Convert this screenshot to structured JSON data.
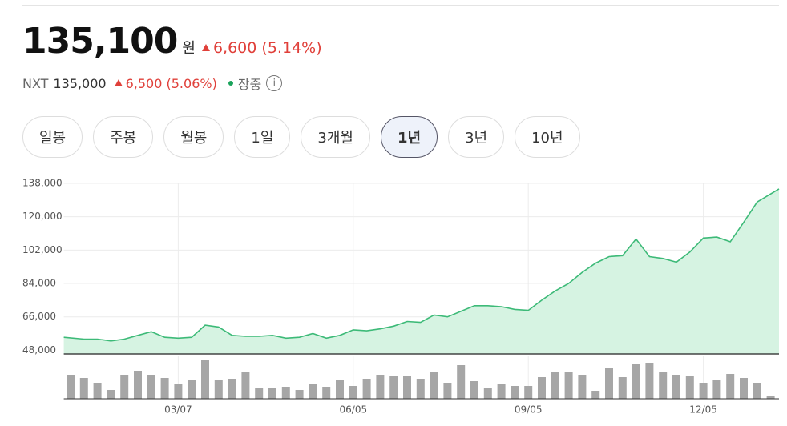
{
  "header": {
    "price": "135,100",
    "unit": "원",
    "change": "6,600",
    "change_pct": "(5.14%)",
    "nxt_label": "NXT",
    "nxt_price": "135,000",
    "nxt_change": "6,500",
    "nxt_change_pct": "(5.06%)",
    "status": "장중"
  },
  "tabs": {
    "items": [
      "일봉",
      "주봉",
      "월봉",
      "1일",
      "3개월",
      "1년",
      "3년",
      "10년"
    ],
    "active": "1년"
  },
  "chart_data": [
    {
      "type": "area",
      "color": "#3dba78",
      "fill": "#d6f3e2",
      "values": [
        55000,
        54000,
        54000,
        53000,
        54000,
        56000,
        58000,
        55000,
        54500,
        55000,
        61500,
        60500,
        56000,
        55500,
        55500,
        56000,
        54500,
        55000,
        57000,
        54500,
        56000,
        59000,
        58500,
        59500,
        61000,
        63500,
        63000,
        67000,
        66000,
        69000,
        72000,
        72000,
        71500,
        70000,
        69500,
        75000,
        80000,
        84000,
        90000,
        95000,
        98500,
        99000,
        108000,
        98500,
        97500,
        95500,
        101000,
        108500,
        109000,
        106500,
        117000,
        128000,
        135000
      ],
      "ylim": [
        46000,
        138000
      ],
      "yticks": [
        {
          "value": 48000,
          "label": "48,000"
        },
        {
          "value": 66000,
          "label": "66,000"
        },
        {
          "value": 84000,
          "label": "84,000"
        },
        {
          "value": 102000,
          "label": "102,000"
        },
        {
          "value": 120000,
          "label": "120,000"
        },
        {
          "value": 138000,
          "label": "138,000"
        }
      ],
      "grid": true
    },
    {
      "type": "bar",
      "color": "#a6a6a6",
      "categories": [
        null,
        null,
        null,
        null,
        null,
        null,
        null,
        null,
        "03/07",
        null,
        null,
        null,
        null,
        null,
        null,
        null,
        null,
        null,
        null,
        null,
        null,
        "06/05",
        null,
        null,
        null,
        null,
        null,
        null,
        null,
        null,
        null,
        null,
        null,
        null,
        "09/05",
        null,
        null,
        null,
        null,
        null,
        null,
        null,
        null,
        null,
        null,
        null,
        null,
        "12/05",
        null,
        null,
        null,
        null,
        null
      ],
      "values": [
        30,
        26,
        20,
        11,
        30,
        35,
        30,
        26,
        18,
        24,
        48,
        24,
        25,
        33,
        14,
        14,
        15,
        11,
        19,
        15,
        23,
        16,
        25,
        30,
        29,
        29,
        25,
        34,
        20,
        42,
        22,
        14,
        19,
        16,
        16,
        27,
        33,
        33,
        30,
        10,
        38,
        27,
        43,
        45,
        33,
        30,
        29,
        20,
        23,
        31,
        26,
        20,
        4
      ],
      "ylim": [
        0,
        50
      ]
    }
  ]
}
